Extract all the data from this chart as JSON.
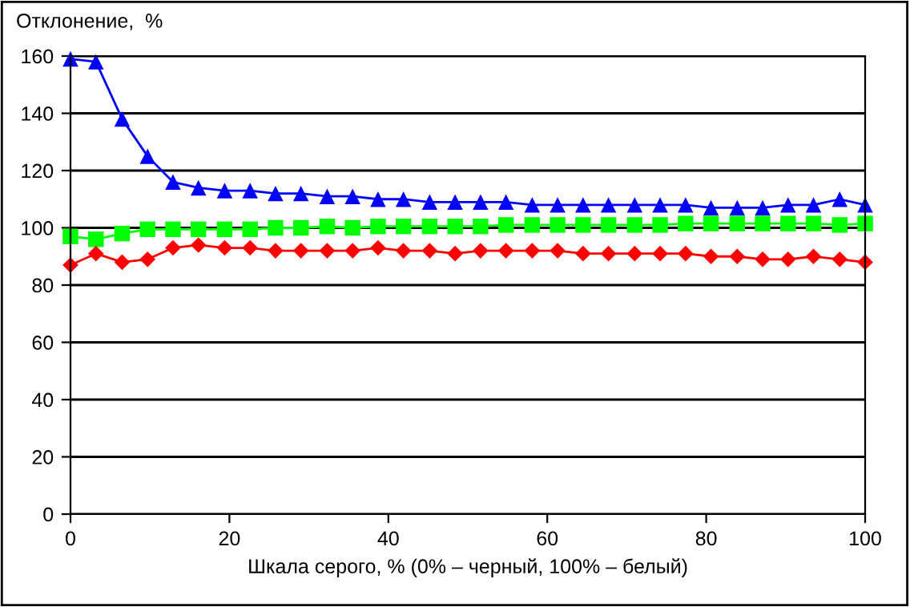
{
  "chart_data": {
    "type": "line",
    "ylabel": "Отклонение,  %",
    "xlabel": "Шкала серого, % (0% – черный, 100% – белый)",
    "x": [
      0,
      3.2,
      6.5,
      9.7,
      12.9,
      16.1,
      19.4,
      22.6,
      25.8,
      29.0,
      32.3,
      35.5,
      38.7,
      41.9,
      45.2,
      48.4,
      51.6,
      54.8,
      58.1,
      61.3,
      64.5,
      67.7,
      71.0,
      74.2,
      77.4,
      80.6,
      83.9,
      87.1,
      90.3,
      93.5,
      96.8,
      100
    ],
    "series": [
      {
        "color": "#0000ff",
        "marker": "triangle",
        "values": [
          159,
          158,
          138,
          125,
          116,
          114,
          113,
          113,
          112,
          112,
          111,
          111,
          110,
          110,
          109,
          109,
          109,
          109,
          108,
          108,
          108,
          108,
          108,
          108,
          108,
          107,
          107,
          107,
          108,
          108,
          110,
          108
        ]
      },
      {
        "color": "#00ff00",
        "marker": "square",
        "values": [
          97,
          96,
          98,
          99.5,
          99.5,
          99.5,
          99.5,
          99.5,
          100,
          100,
          100.5,
          100,
          100.5,
          100.5,
          100.5,
          100.5,
          100.5,
          101,
          101,
          101,
          101,
          101,
          101,
          101,
          101.5,
          101.5,
          101.5,
          101.5,
          101.5,
          101.5,
          101,
          101.5
        ]
      },
      {
        "color": "#ff0000",
        "marker": "diamond",
        "values": [
          87,
          91,
          88,
          89,
          93,
          94,
          93,
          93,
          92,
          92,
          92,
          92,
          93,
          92,
          92,
          91,
          92,
          92,
          92,
          92,
          91,
          91,
          91,
          91,
          91,
          90,
          90,
          89,
          89,
          90,
          89,
          88
        ]
      }
    ],
    "xlim": [
      0,
      100
    ],
    "xticks": [
      0,
      20,
      40,
      60,
      80,
      100
    ],
    "ylim": [
      0,
      160
    ],
    "yticks": [
      0,
      20,
      40,
      60,
      80,
      100,
      120,
      140,
      160
    ],
    "grid": "y",
    "legend": false
  }
}
